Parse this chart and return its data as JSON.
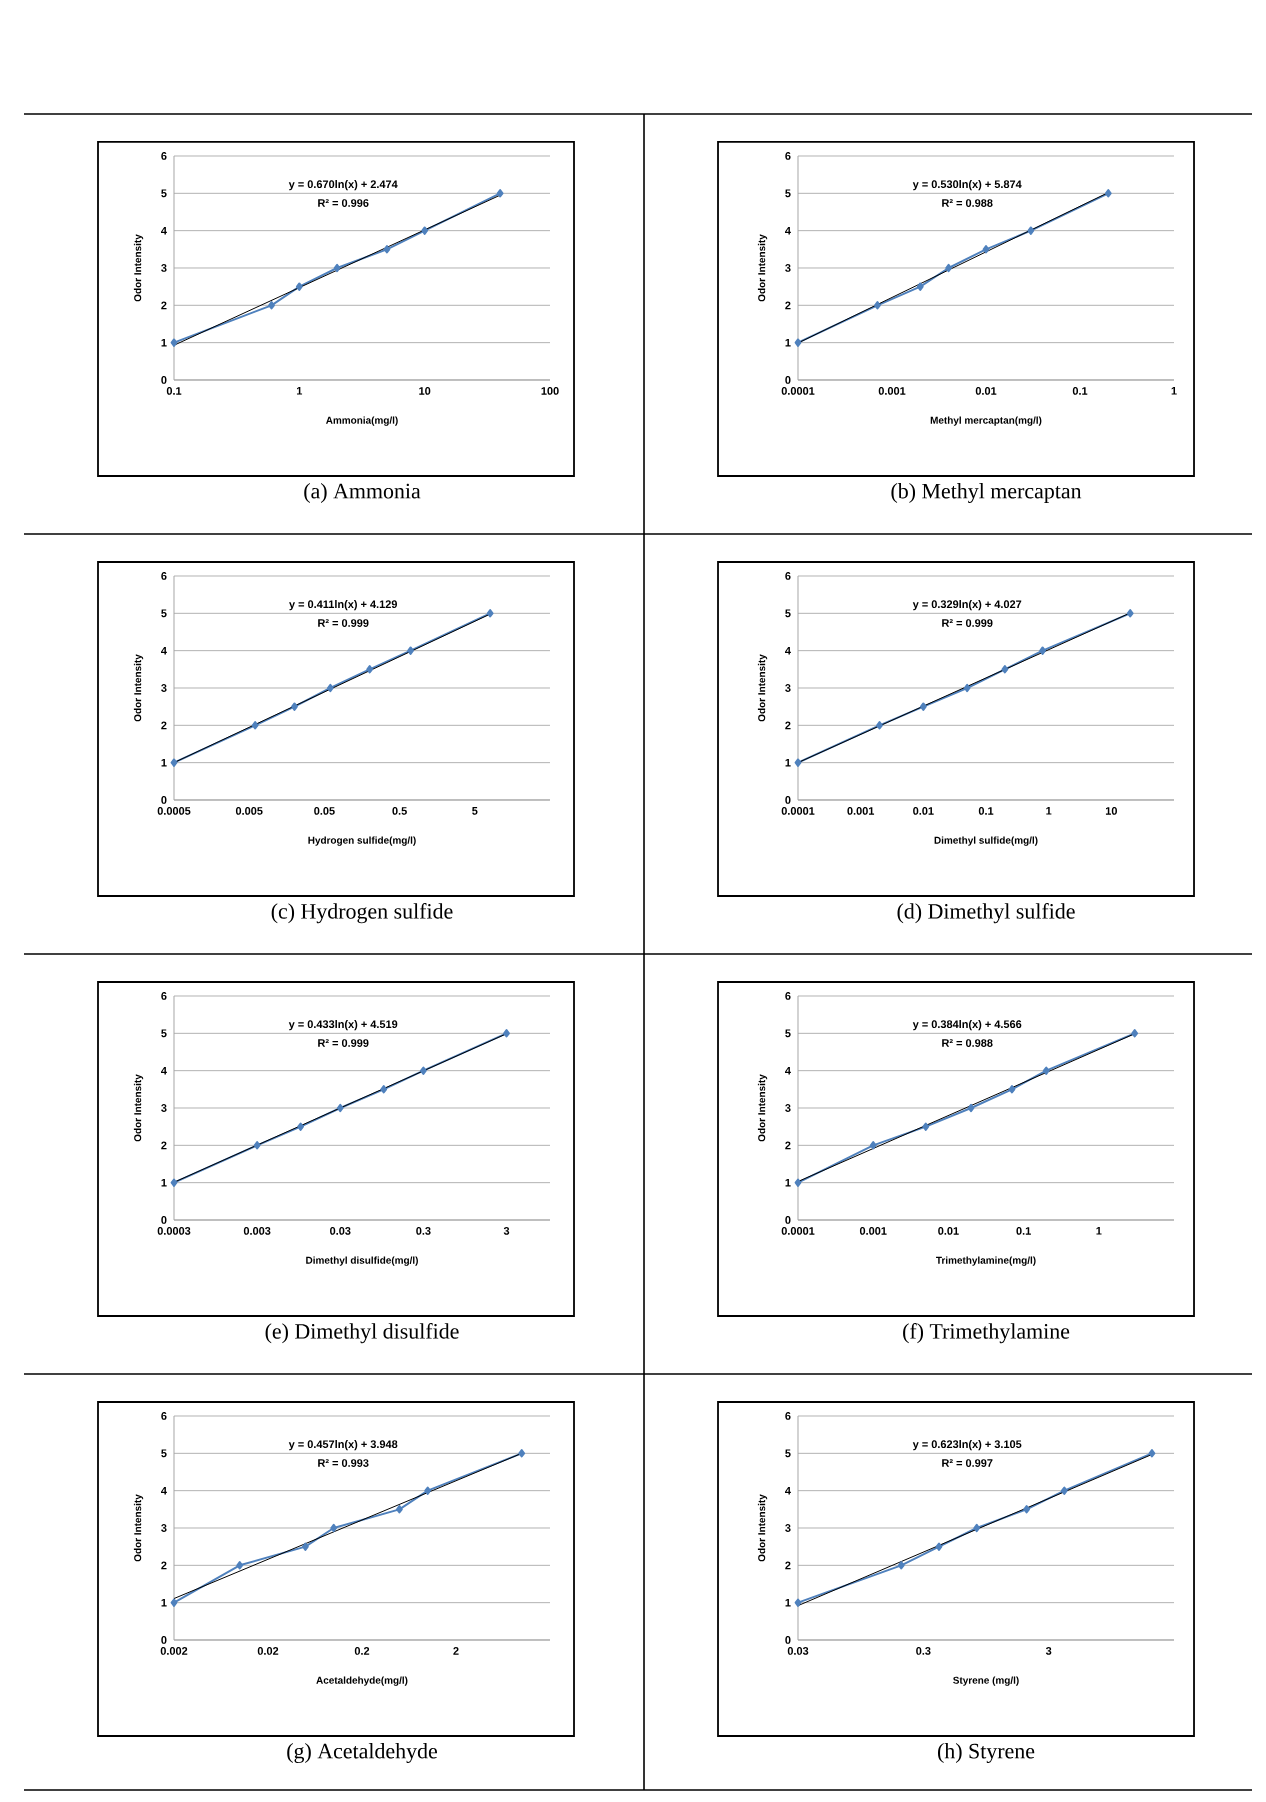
{
  "chart_data": [
    {
      "type": "line",
      "title": "(a) Ammonia",
      "xlabel": "Ammonia(mg/l)",
      "ylabel": "Odor Intensity",
      "log": "x",
      "grid": "y",
      "xlim": [
        0.1,
        100
      ],
      "xticks": [
        0.1,
        1,
        10,
        100
      ],
      "ylim": [
        0,
        6
      ],
      "yticks": [
        0,
        1,
        2,
        3,
        4,
        5,
        6
      ],
      "annotations": [
        "y = 0.670ln(x) + 2.474",
        "R² = 0.996"
      ],
      "series": [
        {
          "color": "#4f81bd",
          "marker": "diamond",
          "x": [
            0.1,
            0.6,
            1,
            2,
            5,
            10,
            40
          ],
          "values": [
            1,
            2,
            2.5,
            3,
            3.5,
            4,
            5
          ]
        },
        {
          "color": "#000000",
          "marker": "none",
          "x": [
            0.1,
            40
          ],
          "values": [
            0.93,
            4.95
          ]
        }
      ]
    },
    {
      "type": "line",
      "title": "(b) Methyl mercaptan",
      "xlabel": "Methyl mercaptan(mg/l)",
      "ylabel": "Odor Intensity",
      "log": "x",
      "grid": "y",
      "xlim": [
        0.0001,
        1
      ],
      "xticks": [
        0.0001,
        0.001,
        0.01,
        0.1,
        1
      ],
      "ylim": [
        0,
        6
      ],
      "yticks": [
        0,
        1,
        2,
        3,
        4,
        5,
        6
      ],
      "annotations": [
        "y = 0.530ln(x) + 5.874",
        "R² = 0.988"
      ],
      "series": [
        {
          "color": "#4f81bd",
          "marker": "diamond",
          "x": [
            0.0001,
            0.0007,
            0.002,
            0.004,
            0.01,
            0.03,
            0.2
          ],
          "values": [
            1,
            2,
            2.5,
            3,
            3.5,
            4,
            5
          ]
        },
        {
          "color": "#000000",
          "marker": "none",
          "x": [
            0.0001,
            0.2
          ],
          "values": [
            0.99,
            5.02
          ]
        }
      ]
    },
    {
      "type": "line",
      "title": "(c) Hydrogen sulfide",
      "xlabel": "Hydrogen sulfide(mg/l)",
      "ylabel": "Odor Intensity",
      "log": "x",
      "grid": "y",
      "xlim": [
        0.0005,
        50
      ],
      "xticks": [
        0.0005,
        0.005,
        0.05,
        0.5,
        5
      ],
      "ylim": [
        0,
        6
      ],
      "yticks": [
        0,
        1,
        2,
        3,
        4,
        5,
        6
      ],
      "annotations": [
        "y = 0.411ln(x) + 4.129",
        "R² = 0.999"
      ],
      "series": [
        {
          "color": "#4f81bd",
          "marker": "diamond",
          "x": [
            0.0005,
            0.006,
            0.02,
            0.06,
            0.2,
            0.7,
            8
          ],
          "values": [
            1,
            2,
            2.5,
            3,
            3.5,
            4,
            5
          ]
        },
        {
          "color": "#000000",
          "marker": "none",
          "x": [
            0.0005,
            8
          ],
          "values": [
            1.0,
            4.98
          ]
        }
      ]
    },
    {
      "type": "line",
      "title": "(d) Dimethyl sulfide",
      "xlabel": "Dimethyl sulfide(mg/l)",
      "ylabel": "Odor Intensity",
      "log": "x",
      "grid": "y",
      "xlim": [
        0.0001,
        100
      ],
      "xticks": [
        0.0001,
        0.001,
        0.01,
        0.1,
        1,
        10
      ],
      "ylim": [
        0,
        6
      ],
      "yticks": [
        0,
        1,
        2,
        3,
        4,
        5,
        6
      ],
      "annotations": [
        "y = 0.329ln(x) + 4.027",
        "R² = 0.999"
      ],
      "series": [
        {
          "color": "#4f81bd",
          "marker": "diamond",
          "x": [
            0.0001,
            0.002,
            0.01,
            0.05,
            0.2,
            0.8,
            20
          ],
          "values": [
            1,
            2,
            2.5,
            3,
            3.5,
            4,
            5
          ]
        },
        {
          "color": "#000000",
          "marker": "none",
          "x": [
            0.0001,
            20
          ],
          "values": [
            1.0,
            5.01
          ]
        }
      ]
    },
    {
      "type": "line",
      "title": "(e) Dimethyl disulfide",
      "xlabel": "Dimethyl disulfide(mg/l)",
      "ylabel": "Odor Intensity",
      "log": "x",
      "grid": "y",
      "xlim": [
        0.0003,
        10
      ],
      "xticks": [
        0.0003,
        0.003,
        0.03,
        0.3,
        3
      ],
      "ylim": [
        0,
        6
      ],
      "yticks": [
        0,
        1,
        2,
        3,
        4,
        5,
        6
      ],
      "annotations": [
        "y = 0.433ln(x) + 4.519",
        "R² = 0.999"
      ],
      "series": [
        {
          "color": "#4f81bd",
          "marker": "diamond",
          "x": [
            0.0003,
            0.003,
            0.01,
            0.03,
            0.1,
            0.3,
            3
          ],
          "values": [
            1,
            2,
            2.5,
            3,
            3.5,
            4,
            5
          ]
        },
        {
          "color": "#000000",
          "marker": "none",
          "x": [
            0.0003,
            3
          ],
          "values": [
            1.01,
            4.99
          ]
        }
      ]
    },
    {
      "type": "line",
      "title": "(f) Trimethylamine",
      "xlabel": "Trimethylamine(mg/l)",
      "ylabel": "Odor Intensity",
      "log": "x",
      "grid": "y",
      "xlim": [
        0.0001,
        10
      ],
      "xticks": [
        0.0001,
        0.001,
        0.01,
        0.1,
        1
      ],
      "ylim": [
        0,
        6
      ],
      "yticks": [
        0,
        1,
        2,
        3,
        4,
        5,
        6
      ],
      "annotations": [
        "y = 0.384ln(x) + 4.566",
        "R² = 0.988"
      ],
      "series": [
        {
          "color": "#4f81bd",
          "marker": "diamond",
          "x": [
            0.0001,
            0.001,
            0.005,
            0.02,
            0.07,
            0.2,
            3
          ],
          "values": [
            1,
            2,
            2.5,
            3,
            3.5,
            4,
            5
          ]
        },
        {
          "color": "#000000",
          "marker": "none",
          "x": [
            0.0001,
            3
          ],
          "values": [
            1.03,
            4.99
          ]
        }
      ]
    },
    {
      "type": "line",
      "title": "(g) Acetaldehyde",
      "xlabel": "Acetaldehyde(mg/l)",
      "ylabel": "Odor Intensity",
      "log": "x",
      "grid": "y",
      "xlim": [
        0.002,
        20
      ],
      "xticks": [
        0.002,
        0.02,
        0.2,
        2
      ],
      "ylim": [
        0,
        6
      ],
      "yticks": [
        0,
        1,
        2,
        3,
        4,
        5,
        6
      ],
      "annotations": [
        "y = 0.457ln(x) + 3.948",
        "R² = 0.993"
      ],
      "series": [
        {
          "color": "#4f81bd",
          "marker": "diamond",
          "x": [
            0.002,
            0.01,
            0.05,
            0.1,
            0.5,
            1,
            10
          ],
          "values": [
            1,
            2,
            2.5,
            3,
            3.5,
            4,
            5
          ]
        },
        {
          "color": "#000000",
          "marker": "none",
          "x": [
            0.002,
            10
          ],
          "values": [
            1.11,
            5.0
          ]
        }
      ]
    },
    {
      "type": "line",
      "title": "(h) Styrene",
      "xlabel": "Styrene (mg/l)",
      "ylabel": "Odor Intensity",
      "log": "x",
      "grid": "y",
      "xlim": [
        0.03,
        30
      ],
      "xticks": [
        0.03,
        0.3,
        3
      ],
      "ylim": [
        0,
        6
      ],
      "yticks": [
        0,
        1,
        2,
        3,
        4,
        5,
        6
      ],
      "annotations": [
        "y = 0.623ln(x) + 3.105",
        "R² = 0.997"
      ],
      "series": [
        {
          "color": "#4f81bd",
          "marker": "diamond",
          "x": [
            0.03,
            0.2,
            0.4,
            0.8,
            2,
            4,
            20
          ],
          "values": [
            1,
            2,
            2.5,
            3,
            3.5,
            4,
            5
          ]
        },
        {
          "color": "#000000",
          "marker": "none",
          "x": [
            0.03,
            20
          ],
          "values": [
            0.92,
            4.97
          ]
        }
      ]
    }
  ]
}
